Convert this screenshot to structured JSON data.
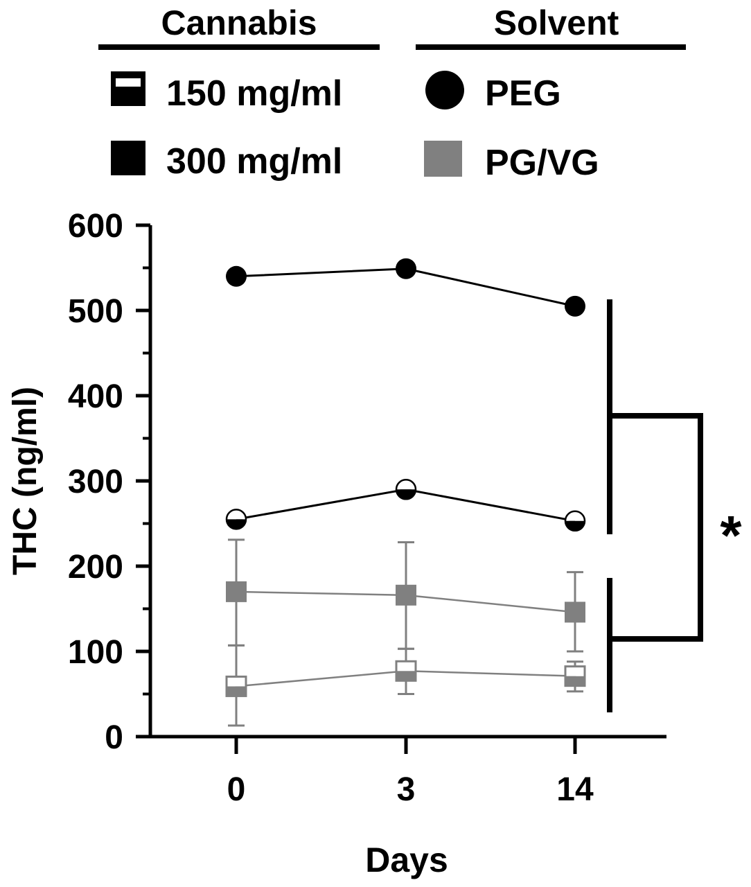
{
  "legend": {
    "cannabis_title": "Cannabis",
    "solvent_title": "Solvent",
    "items": [
      {
        "label": "150 mg/ml",
        "marker": "half-filled-square-icon"
      },
      {
        "label": "300 mg/ml",
        "marker": "filled-square-icon"
      },
      {
        "label": "PEG",
        "marker": "circle-icon"
      },
      {
        "label": "PG/VG",
        "marker": "gray-square-icon"
      }
    ]
  },
  "colors": {
    "peg": "#000000",
    "pgvg": "#808080",
    "axis": "#000000"
  },
  "chart_data": {
    "type": "line",
    "xlabel": "Days",
    "ylabel": "THC (ng/ml)",
    "categories": [
      "0",
      "3",
      "14"
    ],
    "ylim": [
      0,
      600
    ],
    "yticks": [
      0,
      100,
      200,
      300,
      400,
      500,
      600
    ],
    "grid": false,
    "series": [
      {
        "solvent": "PEG",
        "concentration": "300 mg/ml",
        "marker": "circle-filled",
        "color": "#000000",
        "values": [
          540,
          549,
          505
        ]
      },
      {
        "solvent": "PEG",
        "concentration": "150 mg/ml",
        "marker": "circle-half",
        "color": "#000000",
        "values": [
          255,
          290,
          253
        ]
      },
      {
        "solvent": "PG/VG",
        "concentration": "300 mg/ml",
        "marker": "square-filled",
        "color": "#808080",
        "values": [
          170,
          166,
          146
        ],
        "err_low": [
          107,
          103,
          100
        ],
        "err_high": [
          231,
          228,
          193
        ]
      },
      {
        "solvent": "PG/VG",
        "concentration": "150 mg/ml",
        "marker": "square-half",
        "color": "#808080",
        "values": [
          59,
          77,
          71
        ],
        "err_low": [
          13,
          50,
          53
        ],
        "err_high": [
          107,
          103,
          88
        ]
      }
    ],
    "annotations": [
      {
        "type": "significance-bracket",
        "text": "*",
        "groups": [
          "PEG",
          "PG/VG"
        ]
      }
    ]
  }
}
